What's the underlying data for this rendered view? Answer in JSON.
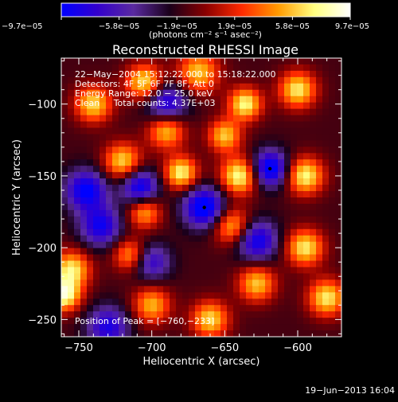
{
  "chart_data": {
    "type": "heatmap",
    "title": "Reconstructed RHESSI Image",
    "xlabel": "Heliocentric X (arcsec)",
    "ylabel": "Heliocentric Y (arcsec)",
    "xlim": [
      -762,
      -570
    ],
    "ylim": [
      -262,
      -68
    ],
    "x_ticks": [
      -750,
      -700,
      -650,
      -600
    ],
    "x_tick_labels": [
      "−750",
      "−700",
      "−650",
      "−600"
    ],
    "y_ticks": [
      -100,
      -150,
      -200,
      -250
    ],
    "y_tick_labels": [
      "−100",
      "−150",
      "−200",
      "−250"
    ],
    "colorbar": {
      "min": -9.7e-05,
      "max": 9.7e-05,
      "tick_labels": [
        "−9.7e−05",
        "−5.8e−05",
        "−1.9e−05",
        "1.9e−05",
        "5.8e−05",
        "9.7e−05"
      ],
      "unit_label": "(photons cm⁻² s⁻¹ asec⁻²)",
      "colormap": [
        "#0000ff",
        "#3300cc",
        "#5a2aa0",
        "#1a001a",
        "#8a0000",
        "#ff2a00",
        "#ff9a00",
        "#ffff80",
        "#ffffff"
      ]
    },
    "annotations": [
      "22−May−2004 15:12:22.000 to 15:18:22.000",
      "Detectors: 4F 5F 6F 7F 8F, Att 0",
      "Energy Range: 12.0 − 25.0 keV",
      "Clean     Total counts: 4.37E+03"
    ],
    "peak_label": "Position of Peak = [−760,−233]",
    "peak": {
      "x": -760,
      "y": -233
    },
    "marked_points": [
      {
        "x": -664,
        "y": -172
      },
      {
        "x": -619,
        "y": -145
      }
    ],
    "sources": [
      {
        "x": -740,
        "y": -100,
        "value": 8e-05,
        "sigma": 9
      },
      {
        "x": -705,
        "y": -85,
        "value": 8.5e-05,
        "sigma": 9
      },
      {
        "x": -668,
        "y": -78,
        "value": 7.5e-05,
        "sigma": 10
      },
      {
        "x": -636,
        "y": -100,
        "value": 9e-05,
        "sigma": 8
      },
      {
        "x": -600,
        "y": -90,
        "value": 8.5e-05,
        "sigma": 9
      },
      {
        "x": -690,
        "y": -118,
        "value": 8e-05,
        "sigma": 9
      },
      {
        "x": -650,
        "y": -122,
        "value": 7.5e-05,
        "sigma": 8
      },
      {
        "x": -720,
        "y": -140,
        "value": 8e-05,
        "sigma": 9
      },
      {
        "x": -680,
        "y": -148,
        "value": 9e-05,
        "sigma": 8
      },
      {
        "x": -640,
        "y": -150,
        "value": 9.5e-05,
        "sigma": 9
      },
      {
        "x": -595,
        "y": -150,
        "value": 9e-05,
        "sigma": 9
      },
      {
        "x": -705,
        "y": -175,
        "value": 7e-05,
        "sigma": 8
      },
      {
        "x": -645,
        "y": -185,
        "value": 7.5e-05,
        "sigma": 9
      },
      {
        "x": -595,
        "y": -200,
        "value": 8.5e-05,
        "sigma": 9
      },
      {
        "x": -755,
        "y": -215,
        "value": 8.5e-05,
        "sigma": 9
      },
      {
        "x": -715,
        "y": -205,
        "value": 6.5e-05,
        "sigma": 8
      },
      {
        "x": -628,
        "y": -225,
        "value": 7.5e-05,
        "sigma": 9
      },
      {
        "x": -580,
        "y": -235,
        "value": 8.5e-05,
        "sigma": 9
      },
      {
        "x": -760,
        "y": -233,
        "value": 9.7e-05,
        "sigma": 8
      },
      {
        "x": -700,
        "y": -240,
        "value": 7e-05,
        "sigma": 9
      },
      {
        "x": -660,
        "y": -250,
        "value": 8e-05,
        "sigma": 9
      },
      {
        "x": -745,
        "y": -160,
        "value": -8.5e-05,
        "sigma": 10
      },
      {
        "x": -708,
        "y": -158,
        "value": -8.5e-05,
        "sigma": 9
      },
      {
        "x": -664,
        "y": -172,
        "value": -9.7e-05,
        "sigma": 10
      },
      {
        "x": -619,
        "y": -145,
        "value": -9.5e-05,
        "sigma": 9
      },
      {
        "x": -690,
        "y": -100,
        "value": -8e-05,
        "sigma": 10
      },
      {
        "x": -628,
        "y": -195,
        "value": -8e-05,
        "sigma": 10
      },
      {
        "x": -735,
        "y": -185,
        "value": -7.5e-05,
        "sigma": 10
      },
      {
        "x": -730,
        "y": -255,
        "value": -7e-05,
        "sigma": 10
      },
      {
        "x": -700,
        "y": -210,
        "value": -6e-05,
        "sigma": 9
      }
    ],
    "grid": false,
    "timestamp": "19−Jun−2013 16:04"
  }
}
